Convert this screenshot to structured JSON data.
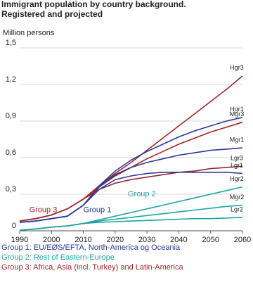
{
  "chart_data": {
    "type": "line",
    "title": "Immigrant population by country background. Registered and projected",
    "y_label": "Million persons",
    "x": [
      1990,
      1995,
      2000,
      2005,
      2010,
      2015,
      2020,
      2025,
      2030,
      2035,
      2040,
      2045,
      2050,
      2055,
      2060
    ],
    "xlim": [
      1990,
      2060
    ],
    "xticks": [
      1990,
      2000,
      2010,
      2020,
      2030,
      2040,
      2050,
      2060
    ],
    "ylim": [
      0,
      1.5
    ],
    "yticks": [
      0,
      {
        "value": 0.3,
        "label": "0,3"
      },
      {
        "value": 0.6,
        "label": "0,6"
      },
      {
        "value": 0.9,
        "label": "0,9"
      },
      {
        "value": 1.2,
        "label": "1,2"
      },
      {
        "value": 1.5,
        "label": "1,5"
      }
    ],
    "grid": true,
    "annotations": [
      "Group 3",
      "Group 1",
      "Group 2"
    ],
    "legend": [
      {
        "text": "Group 1: EU/EØS/EFTA, North-America og Oceania",
        "color": "#2a3a9a"
      },
      {
        "text": "Group 2: Rest of Eastern-Europe",
        "color": "#1ca5a5"
      },
      {
        "text": "Group 3: Africa, Asia (incl. Turkey) and Latin-America",
        "color": "#a0262a"
      }
    ],
    "series": [
      {
        "name": "Hgr3",
        "color": "#a0262a",
        "values": [
          0.08,
          0.1,
          0.13,
          0.18,
          0.26,
          0.37,
          0.47,
          0.56,
          0.66,
          0.76,
          0.86,
          0.96,
          1.06,
          1.16,
          1.27
        ]
      },
      {
        "name": "Hgr1",
        "color": "#2a3a9a",
        "values": [
          0.07,
          0.08,
          0.1,
          0.12,
          0.21,
          0.37,
          0.49,
          0.58,
          0.65,
          0.71,
          0.77,
          0.82,
          0.86,
          0.9,
          0.93
        ]
      },
      {
        "name": "Mgr3",
        "color": "#a0262a",
        "values": [
          0.08,
          0.1,
          0.13,
          0.18,
          0.26,
          0.36,
          0.45,
          0.52,
          0.59,
          0.65,
          0.71,
          0.76,
          0.81,
          0.85,
          0.89
        ]
      },
      {
        "name": "Mgr1",
        "color": "#2a3a9a",
        "values": [
          0.07,
          0.08,
          0.1,
          0.12,
          0.21,
          0.36,
          0.46,
          0.52,
          0.56,
          0.59,
          0.62,
          0.64,
          0.66,
          0.67,
          0.68
        ]
      },
      {
        "name": "Lgr3",
        "color": "#a0262a",
        "values": [
          0.08,
          0.1,
          0.13,
          0.18,
          0.26,
          0.34,
          0.39,
          0.42,
          0.44,
          0.46,
          0.48,
          0.49,
          0.51,
          0.52,
          0.53
        ]
      },
      {
        "name": "Lgr1",
        "color": "#2a3a9a",
        "values": [
          0.07,
          0.08,
          0.1,
          0.12,
          0.21,
          0.34,
          0.42,
          0.45,
          0.47,
          0.48,
          0.48,
          0.48,
          0.48,
          0.48,
          0.47
        ]
      },
      {
        "name": "Hgr2",
        "color": "#1ca5a5",
        "values": [
          0.005,
          0.015,
          0.03,
          0.04,
          0.06,
          0.09,
          0.12,
          0.15,
          0.18,
          0.21,
          0.24,
          0.27,
          0.3,
          0.33,
          0.36
        ]
      },
      {
        "name": "Mgr2",
        "color": "#1ca5a5",
        "values": [
          0.005,
          0.015,
          0.03,
          0.04,
          0.06,
          0.08,
          0.095,
          0.11,
          0.125,
          0.14,
          0.155,
          0.17,
          0.185,
          0.2,
          0.21
        ]
      },
      {
        "name": "Lgr2",
        "color": "#1ca5a5",
        "values": [
          0.005,
          0.015,
          0.03,
          0.04,
          0.06,
          0.07,
          0.075,
          0.08,
          0.085,
          0.09,
          0.095,
          0.1,
          0.1,
          0.105,
          0.11
        ]
      }
    ]
  }
}
